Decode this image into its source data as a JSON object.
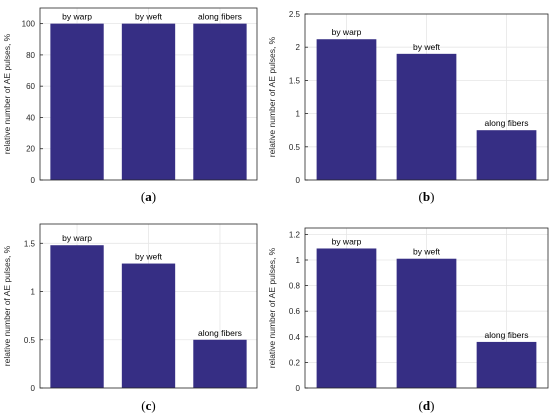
{
  "colors": {
    "bar": "#362E84",
    "grid": "#E6E6E6",
    "axis": "#262626"
  },
  "chart_data": [
    {
      "type": "bar",
      "panel_label": "a",
      "ylabel": "relative number of AE pulses, %",
      "categories": [
        "by warp",
        "by weft",
        "along fibers"
      ],
      "values": [
        100,
        100,
        100
      ],
      "ylim": [
        0,
        110
      ],
      "yticks": [
        0,
        20,
        40,
        60,
        80,
        100
      ],
      "grid": true
    },
    {
      "type": "bar",
      "panel_label": "b",
      "ylabel": "relative number of AE pulses, %",
      "categories": [
        "by warp",
        "by weft",
        "along fibers"
      ],
      "values": [
        2.12,
        1.9,
        0.75
      ],
      "ylim": [
        0,
        2.5
      ],
      "yticks": [
        0,
        0.5,
        1,
        1.5,
        2,
        2.5
      ],
      "grid": true
    },
    {
      "type": "bar",
      "panel_label": "c",
      "ylabel": "relative number of AE pulses, %",
      "categories": [
        "by warp",
        "by weft",
        "along fibers"
      ],
      "values": [
        1.48,
        1.29,
        0.5
      ],
      "ylim": [
        0,
        1.7
      ],
      "yticks": [
        0,
        0.5,
        1,
        1.5
      ],
      "grid": true
    },
    {
      "type": "bar",
      "panel_label": "d",
      "ylabel": "relative number of AE pulses, %",
      "categories": [
        "by warp",
        "by weft",
        "along fibers"
      ],
      "values": [
        1.09,
        1.01,
        0.36
      ],
      "ylim": [
        0,
        1.25
      ],
      "yticks": [
        0,
        0.2,
        0.4,
        0.6,
        0.8,
        1,
        1.2
      ],
      "grid": true
    }
  ]
}
